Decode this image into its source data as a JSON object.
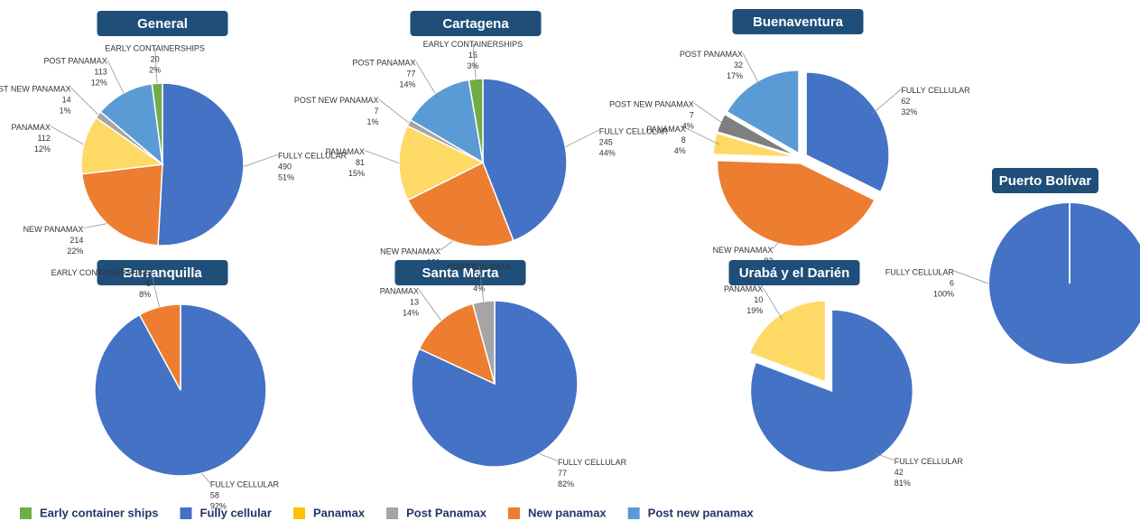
{
  "chart_data": [
    {
      "type": "pie",
      "title": "General",
      "categories": [
        "FULLY CELLULAR",
        "NEW PANAMAX",
        "PANAMAX",
        "POST NEW PANAMAX",
        "POST PANAMAX",
        "EARLY CONTAINERSHIPS"
      ],
      "values": [
        490,
        214,
        112,
        14,
        113,
        20
      ],
      "percents": [
        51,
        22,
        12,
        1,
        12,
        2
      ],
      "percent_labels": [
        "51%",
        "22%",
        "12%",
        "1%",
        "12%",
        "2%"
      ],
      "colors": [
        "#4472c4",
        "#ed7d31",
        "#ffd966",
        "#a5a5a5",
        "#5b9bd5",
        "#70ad47"
      ]
    },
    {
      "type": "pie",
      "title": "Cartagena",
      "categories": [
        "FULLY CELLULAR",
        "NEW PANAMAX",
        "PANAMAX",
        "POST NEW PANAMAX",
        "POST PANAMAX",
        "EARLY CONTAINERSHIPS"
      ],
      "values": [
        245,
        131,
        81,
        7,
        77,
        15
      ],
      "percents": [
        44,
        23,
        15,
        1,
        14,
        3
      ],
      "percent_labels": [
        "44%",
        "23%",
        "15%",
        "1%",
        "14%",
        "3%"
      ],
      "colors": [
        "#4472c4",
        "#ed7d31",
        "#ffd966",
        "#a5a5a5",
        "#5b9bd5",
        "#70ad47"
      ]
    },
    {
      "type": "pie",
      "title": "Buenaventura",
      "categories": [
        "FULLY CELLULAR",
        "NEW PANAMAX",
        "PANAMAX",
        "POST NEW PANAMAX",
        "POST PANAMAX"
      ],
      "values": [
        62,
        83,
        8,
        7,
        32
      ],
      "percents": [
        32,
        43,
        4,
        4,
        17
      ],
      "percent_labels": [
        "32%",
        "43%",
        "4%",
        "4%",
        "17%"
      ],
      "colors": [
        "#4472c4",
        "#ed7d31",
        "#ffd966",
        "#7f7f7f",
        "#5b9bd5"
      ]
    },
    {
      "type": "pie",
      "title": "Barranquilla",
      "categories": [
        "FULLY CELLULAR",
        "EARLY CONTAINERSHIPS"
      ],
      "values": [
        58,
        5
      ],
      "percents": [
        92,
        8
      ],
      "percent_labels": [
        "92%",
        "8%"
      ],
      "colors": [
        "#4472c4",
        "#ed7d31"
      ]
    },
    {
      "type": "pie",
      "title": "Santa Marta",
      "categories": [
        "FULLY CELLULAR",
        "PANAMAX",
        "POST PANAMAX"
      ],
      "values": [
        77,
        13,
        4
      ],
      "percents": [
        82,
        14,
        4
      ],
      "percent_labels": [
        "82%",
        "14%",
        "4%"
      ],
      "colors": [
        "#4472c4",
        "#ed7d31",
        "#a5a5a5"
      ]
    },
    {
      "type": "pie",
      "title": "Urabá y el Darién",
      "categories": [
        "FULLY CELLULAR",
        "PANAMAX"
      ],
      "values": [
        42,
        10
      ],
      "percents": [
        81,
        19
      ],
      "percent_labels": [
        "81%",
        "19%"
      ],
      "colors": [
        "#4472c4",
        "#ffd966"
      ]
    },
    {
      "type": "pie",
      "title": "Puerto Bolívar",
      "categories": [
        "FULLY CELLULAR"
      ],
      "values": [
        6
      ],
      "percents": [
        100
      ],
      "percent_labels": [
        "100%"
      ],
      "colors": [
        "#4472c4"
      ]
    }
  ],
  "legend": [
    {
      "name": "Early container ships",
      "color": "#70ad47"
    },
    {
      "name": "Fully cellular",
      "color": "#4472c4"
    },
    {
      "name": "Panamax",
      "color": "#ffc000"
    },
    {
      "name": "Post Panamax",
      "color": "#a5a5a5"
    },
    {
      "name": "New panamax",
      "color": "#ed7d31"
    },
    {
      "name": "Post new panamax",
      "color": "#5b9bd5"
    }
  ]
}
